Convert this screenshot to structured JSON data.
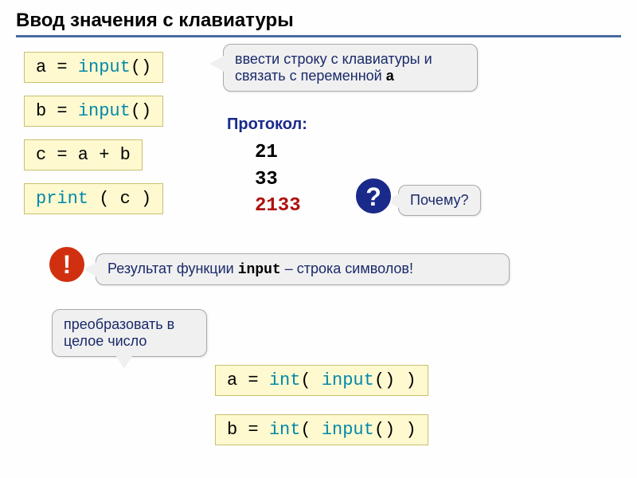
{
  "title": "Ввод значения с клавиатуры",
  "code": {
    "line1_pre": "a = ",
    "line1_fn": "input",
    "line1_post": "()",
    "line2_pre": "b = ",
    "line2_fn": "input",
    "line2_post": "()",
    "line3": "c = a + b",
    "line4_fn": "print",
    "line4_post": " ( c )",
    "line5_pre": "a = ",
    "line5_fn1": "int",
    "line5_mid": "( ",
    "line5_fn2": "input",
    "line5_post": "() )",
    "line6_pre": "b = ",
    "line6_fn1": "int",
    "line6_mid": "( ",
    "line6_fn2": "input",
    "line6_post": "() )"
  },
  "callouts": {
    "top_text1": "ввести строку с клавиатуры и связать с переменной ",
    "top_bold": "a",
    "why": "Почему?",
    "result_pre": "Результат функции ",
    "result_mono": "input",
    "result_post": " – строка символов!",
    "convert": "преобразовать в целое число"
  },
  "protocol": {
    "label": "Протокол:",
    "v1": "21",
    "v2": "33",
    "v3": "2133"
  },
  "badges": {
    "question": "?",
    "exclaim": "!"
  },
  "colors": {
    "code_bg": "#fff9d0",
    "callout_bg": "#f0f0f0",
    "fn_color": "#0088aa",
    "title_underline": "#4a6aa0",
    "q_badge": "#1a2a8a",
    "ex_badge": "#d03010",
    "error_text": "#b01010"
  }
}
